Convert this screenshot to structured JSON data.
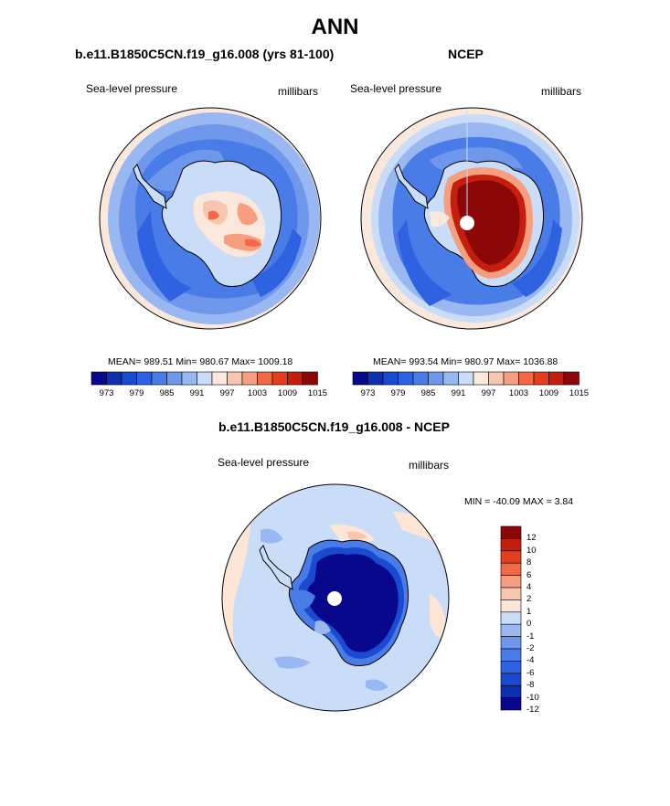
{
  "title": "ANN",
  "panels": [
    {
      "title": "b.e11.B1850C5CN.f19_g16.008 (yrs 81-100)",
      "left_label": "Sea-level pressure",
      "right_label": "millibars",
      "stats": "MEAN= 989.51  Min= 980.67  Max= 1009.18"
    },
    {
      "title": "NCEP",
      "left_label": "Sea-level pressure",
      "right_label": "millibars",
      "stats": "MEAN= 993.54  Min= 980.97  Max= 1036.88"
    },
    {
      "title": "b.e11.B1850C5CN.f19_g16.008 - NCEP",
      "left_label": "Sea-level pressure",
      "right_label": "millibars",
      "stats": "MIN = -40.09 MAX =   3.84"
    }
  ],
  "colorbar_abs": {
    "colors": [
      "#08088c",
      "#0d2fb0",
      "#1a4ad0",
      "#2f62e0",
      "#4a7ce8",
      "#6f97ec",
      "#99b8f2",
      "#c9dcf8",
      "#fbe8dc",
      "#f8c6ae",
      "#f59e80",
      "#f06a48",
      "#e43e1c",
      "#c41e0c",
      "#8c0808"
    ],
    "tick_labels": [
      "973",
      "979",
      "985",
      "991",
      "997",
      "1003",
      "1009",
      "1015"
    ]
  },
  "colorbar_diff": {
    "colors": [
      "#08088c",
      "#0d2fb0",
      "#1a4ad0",
      "#2f62e0",
      "#4a7ce8",
      "#6f97ec",
      "#99b8f2",
      "#c9dcf8",
      "#fde6d6",
      "#f8c6ae",
      "#f59e80",
      "#f06a48",
      "#e43e1c",
      "#c41e0c",
      "#8c0808"
    ],
    "tick_labels": [
      "12",
      "10",
      "8",
      "6",
      "4",
      "2",
      "1",
      "0",
      "-1",
      "-2",
      "-4",
      "-6",
      "-8",
      "-10",
      "-12"
    ]
  },
  "map_colors": {
    "ocean_far": "#c9dcf8",
    "ocean_mid": "#6f97ec",
    "ocean_deep": "#2f62e0",
    "rim_pink": "#fbe8dc",
    "land_light": "#c9dcf8",
    "high_pink": "#f59e80",
    "high_red": "#e43e1c",
    "dark_red": "#8c0808",
    "dark_blue": "#08088c"
  }
}
